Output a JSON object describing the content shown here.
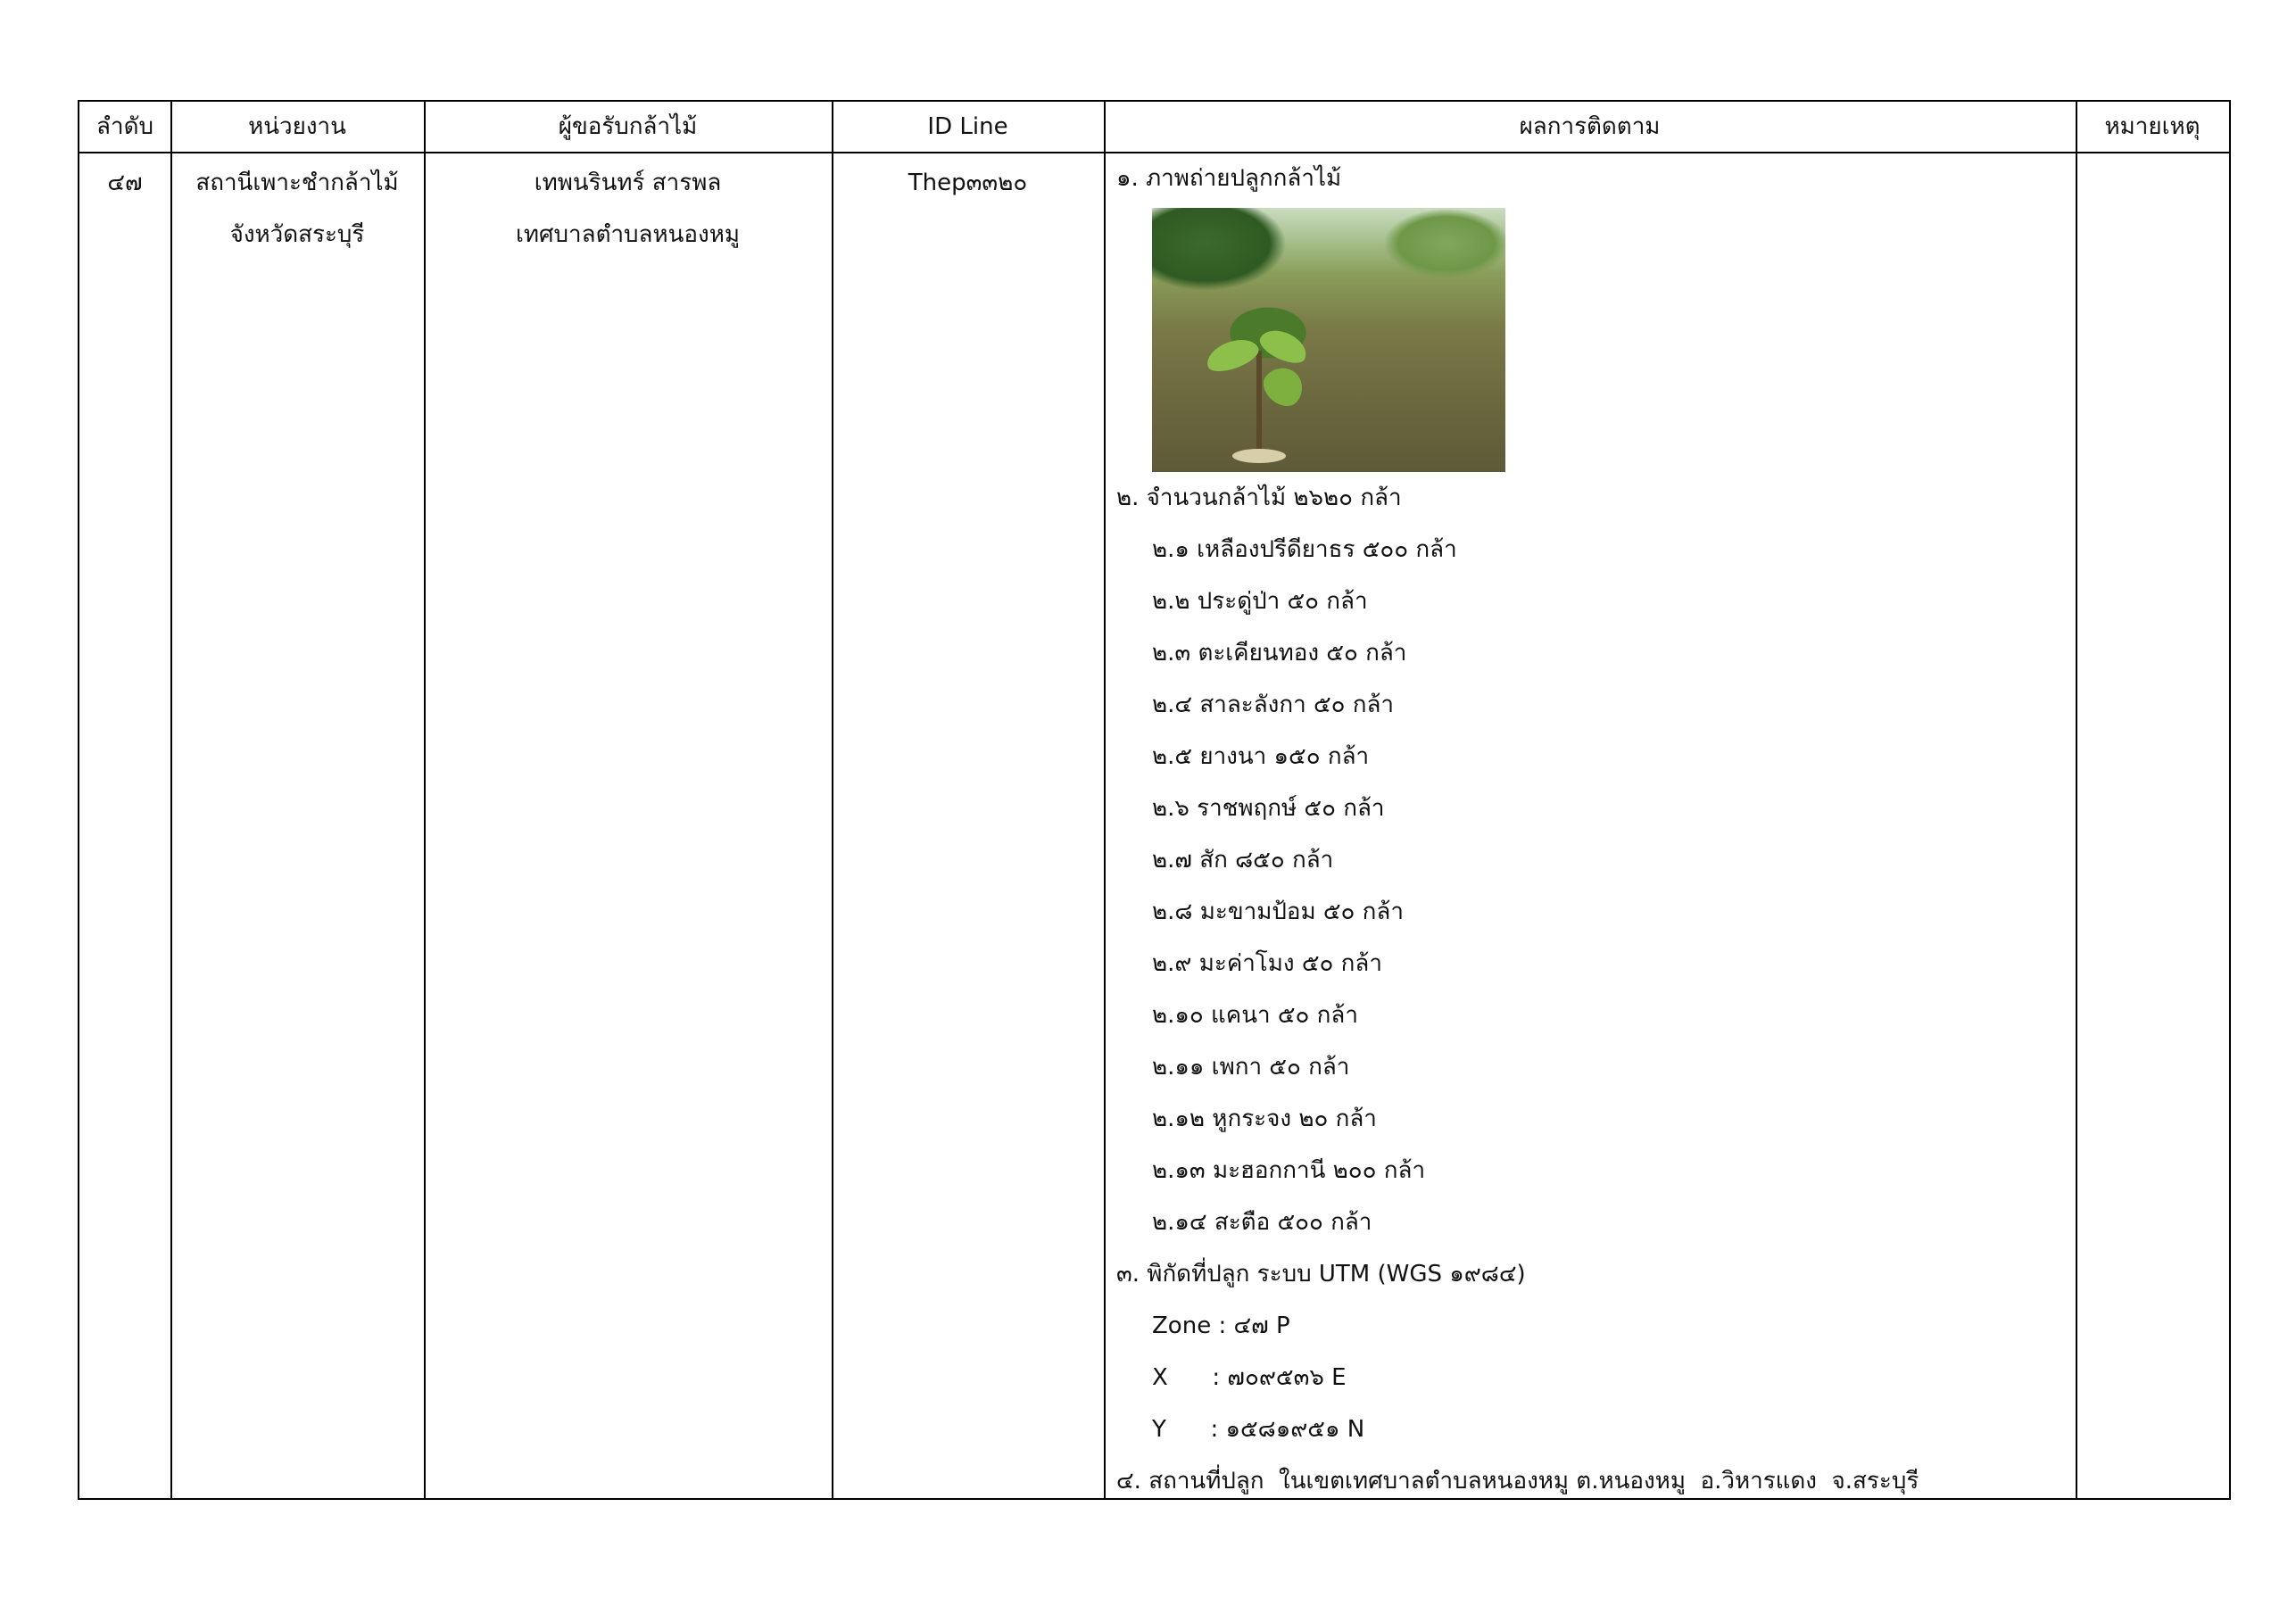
{
  "table": {
    "headers": [
      "ลำดับ",
      "หน่วยงาน",
      "ผู้ขอรับกล้าไม้",
      "ID Line",
      "ผลการติดตาม",
      "หมายเหตุ"
    ],
    "row": {
      "number": "๔๗",
      "agency": [
        "สถานีเพาะชำกล้าไม้",
        "จังหวัดสระบุรี"
      ],
      "recipient": [
        "เทพนรินทร์ สารพล",
        "เทศบาลตำบลหนองหมู"
      ],
      "id_line": "Thep๓๓๒๐",
      "results": {
        "photo_heading": "๑. ภาพถ่ายปลูกกล้าไม้",
        "photo_alt": "seedling planting photo",
        "count_heading": "๒. จำนวนกล้าไม้ ๒๖๒๐ กล้า",
        "items": [
          "๒.๑ เหลืองปรีดียาธร ๕๐๐ กล้า",
          "๒.๒ ประดู่ป่า ๕๐ กล้า",
          "๒.๓ ตะเคียนทอง  ๕๐ กล้า",
          "๒.๔ สาละลังกา ๕๐ กล้า",
          "๒.๕ ยางนา ๑๕๐ กล้า",
          "๒.๖ ราชพฤกษ์ ๕๐ กล้า",
          "๒.๗ สัก ๘๕๐ กล้า",
          "๒.๘ มะขามป้อม ๕๐ กล้า",
          "๒.๙ มะค่าโมง ๕๐ กล้า",
          "๒.๑๐ แคนา ๕๐ กล้า",
          "๒.๑๑ เพกา ๕๐ กล้า",
          "๒.๑๒ หูกระจง ๒๐ กล้า",
          "๒.๑๓ มะฮอกกานี ๒๐๐ กล้า",
          "๒.๑๔ สะตือ ๕๐๐ กล้า"
        ],
        "coord_heading": "๓. พิกัดที่ปลูก ระบบ UTM (WGS ๑๙๘๔)",
        "zone": "Zone : ๔๗ P",
        "x": "X      : ๗๐๙๕๓๖ E",
        "y": "Y      : ๑๕๘๑๙๕๑ N",
        "location": "๔. สถานที่ปลูก  ในเขตเทศบาลตำบลหนองหมู ต.หนองหมู  อ.วิหารแดง  จ.สระบุรี"
      },
      "remarks": ""
    }
  }
}
